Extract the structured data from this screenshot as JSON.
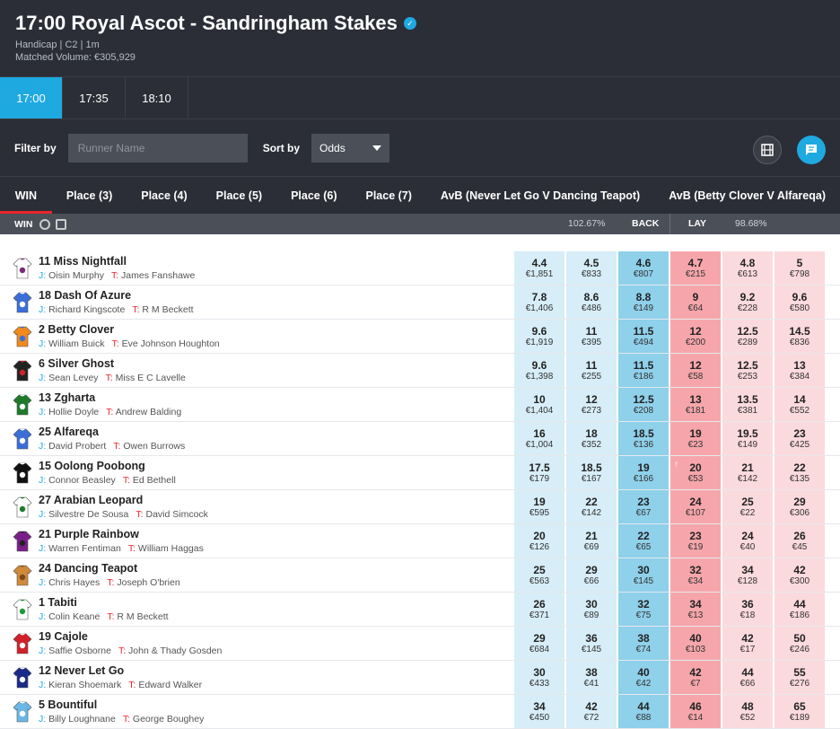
{
  "header": {
    "title": "17:00 Royal Ascot - Sandringham Stakes",
    "race_info": "Handicap | C2 | 1m",
    "matched_volume": "Matched Volume: €305,929"
  },
  "times": [
    {
      "label": "17:00",
      "active": true
    },
    {
      "label": "17:35",
      "active": false
    },
    {
      "label": "18:10",
      "active": false
    }
  ],
  "filter": {
    "filter_label": "Filter by",
    "placeholder": "Runner Name",
    "sort_label": "Sort by",
    "sort_value": "Odds"
  },
  "market_tabs": [
    "WIN",
    "Place (3)",
    "Place (4)",
    "Place (5)",
    "Place (6)",
    "Place (7)",
    "AvB (Never Let Go V Dancing Teapot)",
    "AvB (Betty Clover V Alfareqa)"
  ],
  "subbar": {
    "market": "WIN",
    "back_book": "102.67%",
    "back_label": "BACK",
    "lay_label": "LAY",
    "lay_book": "98.68%"
  },
  "colors": {
    "accent": "#1fa9e1",
    "lay": "#f6a6ab",
    "back": "#8fd0ea",
    "header_bg": "#2b2e36",
    "active_tab": "#e8262c"
  },
  "runners": [
    {
      "name": "11 Miss Nightfall",
      "jockey": "Oisin Murphy",
      "trainer": "James Fanshawe",
      "silk": [
        "#ffffff",
        "#7a2a7a"
      ],
      "prices": [
        [
          "4.4",
          "€1,851"
        ],
        [
          "4.5",
          "€833"
        ],
        [
          "4.6",
          "€807"
        ],
        [
          "4.7",
          "€215"
        ],
        [
          "4.8",
          "€613"
        ],
        [
          "5",
          "€798"
        ]
      ]
    },
    {
      "name": "18 Dash Of Azure",
      "jockey": "Richard Kingscote",
      "trainer": "R M Beckett",
      "silk": [
        "#3a6fd8",
        "#ffffff"
      ],
      "prices": [
        [
          "7.8",
          "€1,406"
        ],
        [
          "8.6",
          "€486"
        ],
        [
          "8.8",
          "€149"
        ],
        [
          "9",
          "€64"
        ],
        [
          "9.2",
          "€228"
        ],
        [
          "9.6",
          "€580"
        ]
      ]
    },
    {
      "name": "2 Betty Clover",
      "jockey": "William Buick",
      "trainer": "Eve Johnson Houghton",
      "silk": [
        "#f08a1c",
        "#3a6fd8"
      ],
      "prices": [
        [
          "9.6",
          "€1,919"
        ],
        [
          "11",
          "€395"
        ],
        [
          "11.5",
          "€494"
        ],
        [
          "12",
          "€200"
        ],
        [
          "12.5",
          "€289"
        ],
        [
          "14.5",
          "€836"
        ]
      ]
    },
    {
      "name": "6 Silver Ghost",
      "jockey": "Sean Levey",
      "trainer": "Miss E C Lavelle",
      "silk": [
        "#222222",
        "#d0202a"
      ],
      "prices": [
        [
          "9.6",
          "€1,398"
        ],
        [
          "11",
          "€255"
        ],
        [
          "11.5",
          "€186"
        ],
        [
          "12",
          "€58"
        ],
        [
          "12.5",
          "€253"
        ],
        [
          "13",
          "€384"
        ]
      ]
    },
    {
      "name": "13 Zgharta",
      "jockey": "Hollie Doyle",
      "trainer": "Andrew Balding",
      "silk": [
        "#1e7a2a",
        "#ffffff"
      ],
      "prices": [
        [
          "10",
          "€1,404"
        ],
        [
          "12",
          "€273"
        ],
        [
          "12.5",
          "€208"
        ],
        [
          "13",
          "€181"
        ],
        [
          "13.5",
          "€381"
        ],
        [
          "14",
          "€552"
        ]
      ]
    },
    {
      "name": "25 Alfareqa",
      "jockey": "David Probert",
      "trainer": "Owen Burrows",
      "silk": [
        "#3a6fd8",
        "#ffffff"
      ],
      "prices": [
        [
          "16",
          "€1,004"
        ],
        [
          "18",
          "€352"
        ],
        [
          "18.5",
          "€136"
        ],
        [
          "19",
          "€23"
        ],
        [
          "19.5",
          "€149"
        ],
        [
          "23",
          "€425"
        ]
      ]
    },
    {
      "name": "15 Oolong Poobong",
      "jockey": "Connor Beasley",
      "trainer": "Ed Bethell",
      "silk": [
        "#111111",
        "#ffffff"
      ],
      "prices": [
        [
          "17.5",
          "€179"
        ],
        [
          "18.5",
          "€167"
        ],
        [
          "19",
          "€166"
        ],
        [
          "20",
          "€53"
        ],
        [
          "21",
          "€142"
        ],
        [
          "22",
          "€135"
        ]
      ]
    },
    {
      "name": "27 Arabian Leopard",
      "jockey": "Silvestre De Sousa",
      "trainer": "David Simcock",
      "silk": [
        "#ffffff",
        "#1e7a2a"
      ],
      "prices": [
        [
          "19",
          "€595"
        ],
        [
          "22",
          "€142"
        ],
        [
          "23",
          "€67"
        ],
        [
          "24",
          "€107"
        ],
        [
          "25",
          "€22"
        ],
        [
          "29",
          "€306"
        ]
      ]
    },
    {
      "name": "21 Purple Rainbow",
      "jockey": "Warren Fentiman",
      "trainer": "William Haggas",
      "silk": [
        "#7a1f8a",
        "#222222"
      ],
      "prices": [
        [
          "20",
          "€126"
        ],
        [
          "21",
          "€69"
        ],
        [
          "22",
          "€65"
        ],
        [
          "23",
          "€19"
        ],
        [
          "24",
          "€40"
        ],
        [
          "26",
          "€45"
        ]
      ]
    },
    {
      "name": "24 Dancing Teapot",
      "jockey": "Chris Hayes",
      "trainer": "Joseph O'brien",
      "silk": [
        "#d08a3a",
        "#7a4a1a"
      ],
      "prices": [
        [
          "25",
          "€563"
        ],
        [
          "29",
          "€66"
        ],
        [
          "30",
          "€145"
        ],
        [
          "32",
          "€34"
        ],
        [
          "34",
          "€128"
        ],
        [
          "42",
          "€300"
        ]
      ]
    },
    {
      "name": "1 Tabiti",
      "jockey": "Colin Keane",
      "trainer": "R M Beckett",
      "silk": [
        "#ffffff",
        "#1e9a3a"
      ],
      "prices": [
        [
          "26",
          "€371"
        ],
        [
          "30",
          "€89"
        ],
        [
          "32",
          "€75"
        ],
        [
          "34",
          "€13"
        ],
        [
          "36",
          "€18"
        ],
        [
          "44",
          "€186"
        ]
      ]
    },
    {
      "name": "19 Cajole",
      "jockey": "Saffie Osborne",
      "trainer": "John & Thady Gosden",
      "silk": [
        "#d0202a",
        "#ffffff"
      ],
      "prices": [
        [
          "29",
          "€684"
        ],
        [
          "36",
          "€145"
        ],
        [
          "38",
          "€74"
        ],
        [
          "40",
          "€103"
        ],
        [
          "42",
          "€17"
        ],
        [
          "50",
          "€246"
        ]
      ]
    },
    {
      "name": "12 Never Let Go",
      "jockey": "Kieran Shoemark",
      "trainer": "Edward Walker",
      "silk": [
        "#1a2a8a",
        "#ffffff"
      ],
      "prices": [
        [
          "30",
          "€433"
        ],
        [
          "38",
          "€41"
        ],
        [
          "40",
          "€42"
        ],
        [
          "42",
          "€7"
        ],
        [
          "44",
          "€66"
        ],
        [
          "55",
          "€276"
        ]
      ]
    },
    {
      "name": "5 Bountiful",
      "jockey": "Billy Loughnane",
      "trainer": "George Boughey",
      "silk": [
        "#6ab8e8",
        "#ffffff"
      ],
      "prices": [
        [
          "34",
          "€450"
        ],
        [
          "42",
          "€72"
        ],
        [
          "44",
          "€88"
        ],
        [
          "46",
          "€14"
        ],
        [
          "48",
          "€52"
        ],
        [
          "65",
          "€189"
        ]
      ]
    }
  ]
}
